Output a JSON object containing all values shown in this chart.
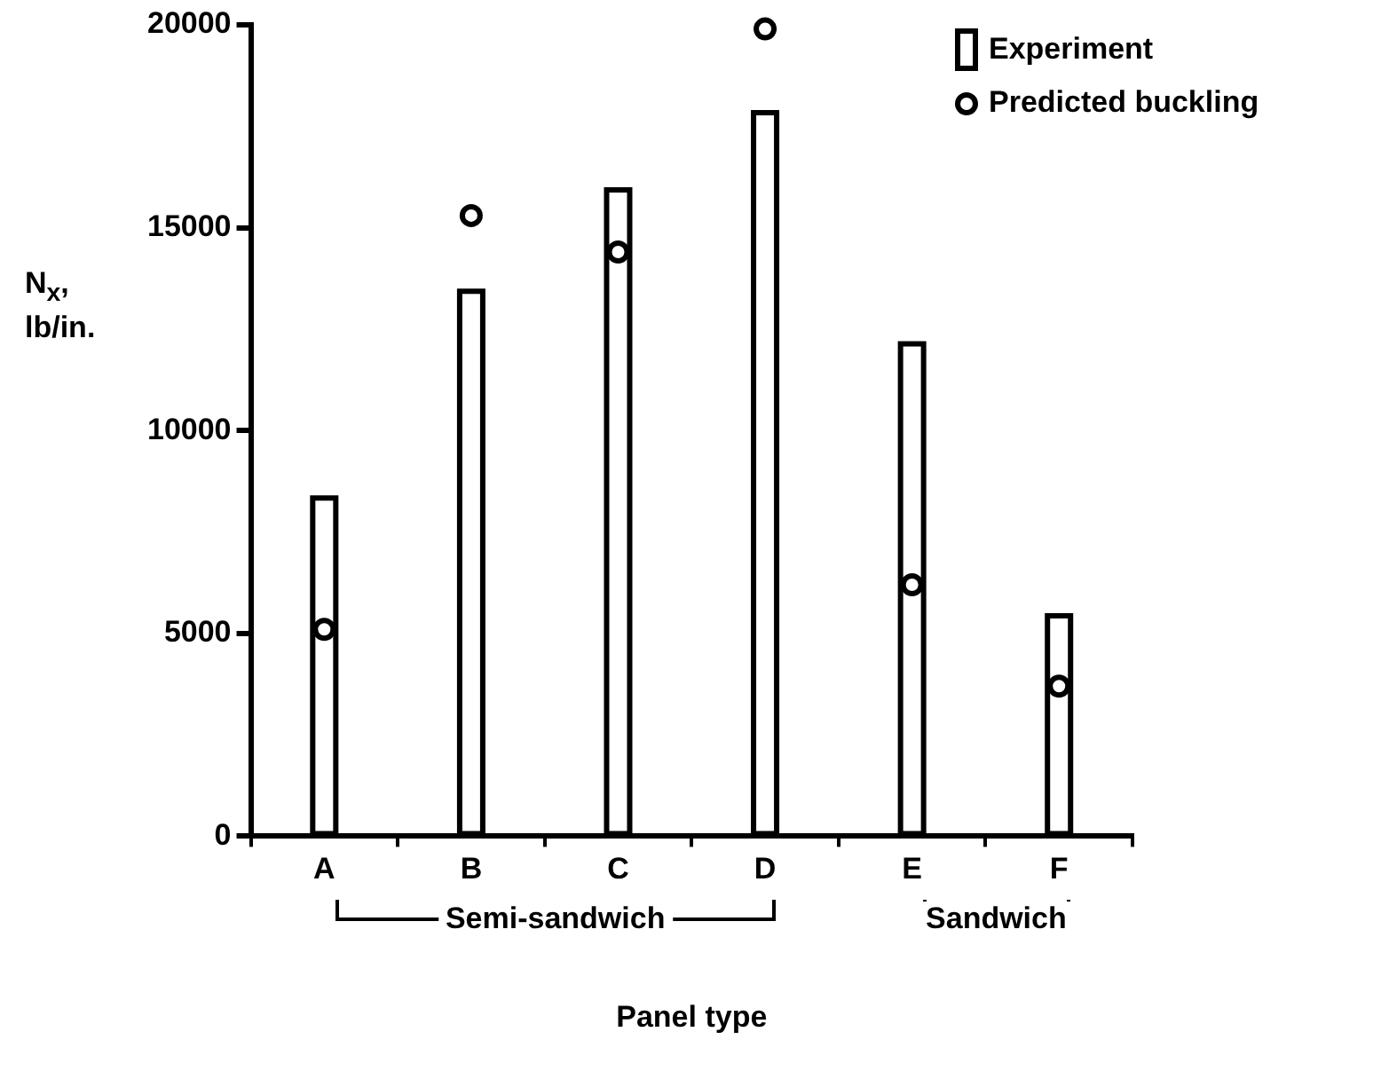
{
  "chart_data": {
    "type": "bar",
    "xlabel": "Panel type",
    "ylabel": "N$_{x}$, lb/in.",
    "categories": [
      "A",
      "B",
      "C",
      "D",
      "E",
      "F"
    ],
    "series": [
      {
        "name": "Experiment",
        "color": "#000000",
        "values": [
          8400,
          13500,
          16000,
          17900,
          12200,
          5500
        ]
      },
      {
        "name": "Predicted buckling",
        "type": "scatter",
        "color": "#000000",
        "x": [
          "A",
          "B",
          "C",
          "D",
          "E",
          "F"
        ],
        "values": [
          5100,
          15300,
          14400,
          19900,
          6200,
          3700
        ]
      }
    ],
    "annotations": [
      "Semi-sandwich",
      "Sandwich"
    ],
    "ylim": [
      0,
      20000
    ],
    "yticks": [
      0,
      5000,
      10000,
      15000,
      20000
    ],
    "grid": false,
    "legend": "top right",
    "marker": "circle"
  }
}
